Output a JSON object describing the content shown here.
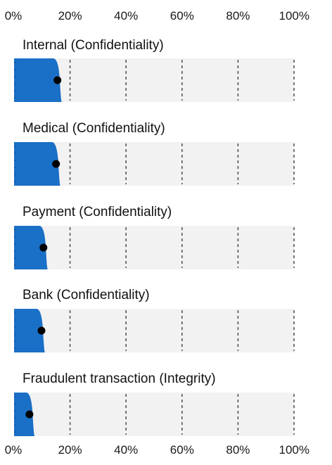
{
  "chart_data": {
    "type": "bar",
    "x_axis": {
      "ticks": [
        0,
        20,
        40,
        60,
        80,
        100
      ],
      "tick_labels": [
        "0%",
        "20%",
        "40%",
        "60%",
        "80%",
        "100%"
      ],
      "xlim": [
        0,
        100
      ]
    },
    "gridlines": "dashed at 20% intervals",
    "categories": [
      "Internal (Confidentiality)",
      "Medical (Confidentiality)",
      "Payment (Confidentiality)",
      "Bank (Confidentiality)",
      "Fraudulent transaction (Integrity)"
    ],
    "rows": [
      {
        "label": "Internal (Confidentiality)",
        "point": 15.5,
        "band_upper": 17
      },
      {
        "label": "Medical (Confidentiality)",
        "point": 15,
        "band_upper": 16.5
      },
      {
        "label": "Payment (Confidentiality)",
        "point": 10.5,
        "band_upper": 12
      },
      {
        "label": "Bank (Confidentiality)",
        "point": 9.8,
        "band_upper": 11
      },
      {
        "label": "Fraudulent transaction (Integrity)",
        "point": 5.5,
        "band_upper": 7.3
      }
    ],
    "colors": {
      "band": "#1a6fc6",
      "point": "#000000",
      "track": "#f2f2f2",
      "grid": "#555555"
    }
  }
}
